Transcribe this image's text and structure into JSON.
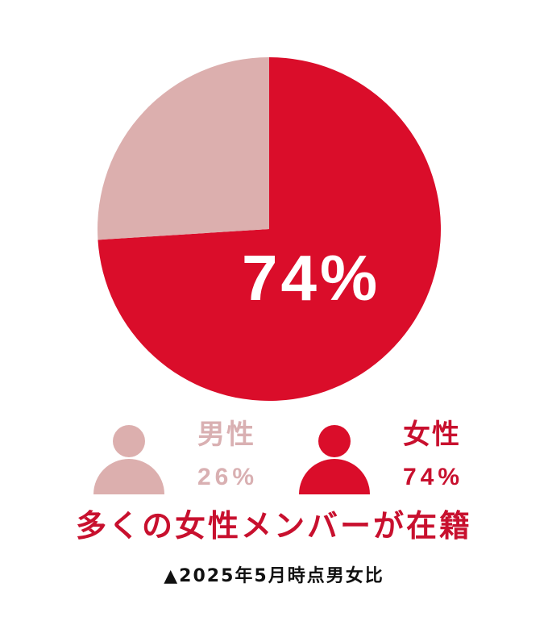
{
  "chart_data": {
    "type": "pie",
    "slices": [
      {
        "label": "女性",
        "value": 74,
        "color": "#da0d2a"
      },
      {
        "label": "男性",
        "value": 26,
        "color": "#dcafae"
      }
    ],
    "center_label": "74%",
    "start": "12 o'clock",
    "direction": "clockwise"
  },
  "legend": {
    "male": {
      "label": "男性",
      "value": "26%",
      "icon": "person-icon",
      "color": "#dcafae",
      "text_color": "#d9b0b2"
    },
    "female": {
      "label": "女性",
      "value": "74%",
      "icon": "person-icon",
      "color": "#da0d2a",
      "text_color": "#c8102e"
    }
  },
  "headline": "多くの女性メンバーが在籍",
  "note": "▲2025年5月時点男女比"
}
